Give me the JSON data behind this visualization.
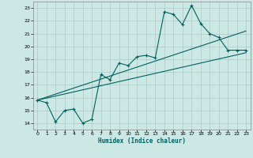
{
  "xlabel": "Humidex (Indice chaleur)",
  "bg_color": "#cce8e4",
  "grid_color": "#b0c8c4",
  "line_color": "#006060",
  "xlim": [
    -0.5,
    23.5
  ],
  "ylim": [
    13.5,
    23.5
  ],
  "xticks": [
    0,
    1,
    2,
    3,
    4,
    5,
    6,
    7,
    8,
    9,
    10,
    11,
    12,
    13,
    14,
    15,
    16,
    17,
    18,
    19,
    20,
    21,
    22,
    23
  ],
  "yticks": [
    14,
    15,
    16,
    17,
    18,
    19,
    20,
    21,
    22,
    23
  ],
  "data_x": [
    0,
    1,
    2,
    3,
    4,
    5,
    6,
    7,
    8,
    9,
    10,
    11,
    12,
    13,
    14,
    15,
    16,
    17,
    18,
    19,
    20,
    21,
    22,
    23
  ],
  "data_y": [
    15.8,
    15.6,
    14.1,
    15.0,
    15.1,
    14.0,
    14.3,
    17.8,
    17.4,
    18.7,
    18.5,
    19.2,
    19.3,
    19.1,
    22.7,
    22.5,
    21.7,
    23.2,
    21.8,
    21.0,
    20.7,
    19.7,
    19.7,
    19.7
  ],
  "trend1_x": [
    0,
    23
  ],
  "trend1_y": [
    15.8,
    19.5
  ],
  "trend2_x": [
    0,
    23
  ],
  "trend2_y": [
    15.8,
    21.2
  ]
}
